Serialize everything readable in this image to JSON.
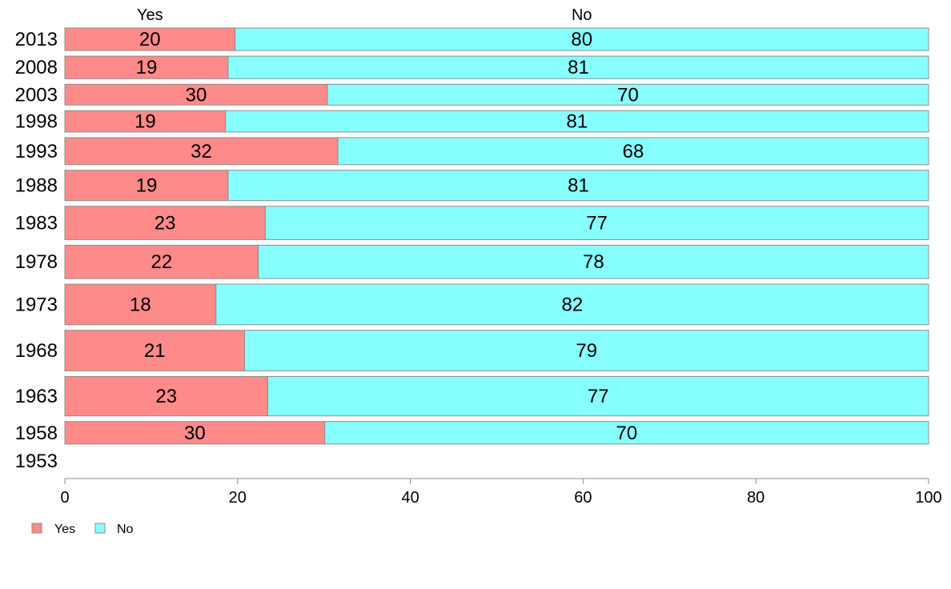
{
  "chart_data": {
    "type": "bar",
    "orientation": "horizontal",
    "stacked": true,
    "percent": true,
    "categories": [
      "2013",
      "2008",
      "2003",
      "1998",
      "1993",
      "1988",
      "1983",
      "1978",
      "1973",
      "1968",
      "1963",
      "1958",
      "1953"
    ],
    "series": [
      {
        "name": "Yes",
        "color": "#FF8A8A",
        "values": [
          19.7,
          18.9,
          30.4,
          18.6,
          31.6,
          18.9,
          23.2,
          22.4,
          17.5,
          20.8,
          23.5,
          30.1,
          null
        ],
        "labels": [
          "20",
          "19",
          "30",
          "19",
          "32",
          "19",
          "23",
          "22",
          "18",
          "21",
          "23",
          "30",
          ""
        ]
      },
      {
        "name": "No",
        "color": "#88FFFF",
        "values": [
          80.3,
          81.1,
          69.6,
          81.4,
          68.4,
          81.1,
          76.8,
          77.6,
          82.5,
          79.2,
          76.5,
          69.9,
          null
        ],
        "labels": [
          "80",
          "81",
          "70",
          "81",
          "68",
          "81",
          "77",
          "78",
          "82",
          "79",
          "77",
          "70",
          ""
        ]
      }
    ],
    "bar_weights": [
      1.0,
      1.0,
      0.92,
      0.95,
      1.2,
      1.35,
      1.48,
      1.48,
      1.8,
      1.8,
      1.75,
      1.0,
      1.0
    ],
    "xlim": [
      0,
      100
    ],
    "x_ticks": [
      "0",
      "20",
      "40",
      "60",
      "80",
      "100"
    ],
    "legend_position": "bottom-left",
    "top_labels": [
      "Yes",
      "No"
    ],
    "grid": false
  }
}
